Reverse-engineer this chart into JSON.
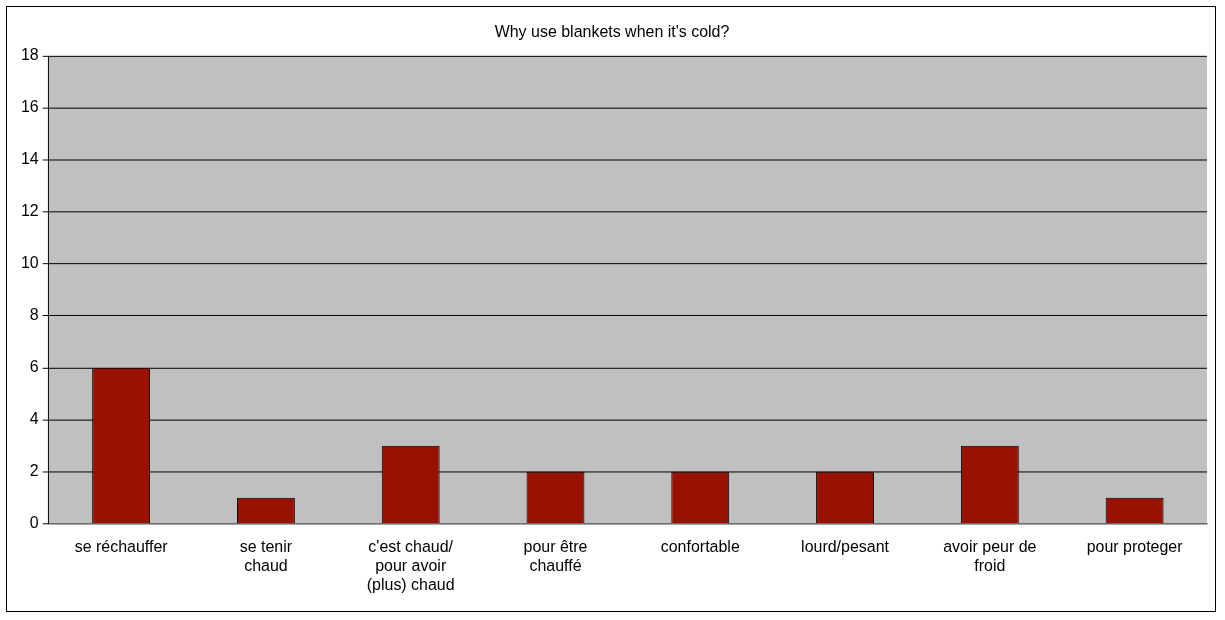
{
  "chart_data": {
    "type": "bar",
    "title": "Why use blankets when it's cold?",
    "categories": [
      "se réchauffer",
      "se tenir chaud",
      "c'est chaud/ pour avoir (plus) chaud",
      "pour être chauffé",
      "confortable",
      "lourd/pesant",
      "avoir peur de froid",
      "pour proteger"
    ],
    "values": [
      6,
      1,
      3,
      2,
      2,
      2,
      3,
      1
    ],
    "color": "#991100",
    "ylim": [
      0,
      18
    ],
    "yticks": [
      0,
      2,
      4,
      6,
      8,
      10,
      12,
      14,
      16,
      18
    ],
    "grid": "y",
    "legend": false
  }
}
